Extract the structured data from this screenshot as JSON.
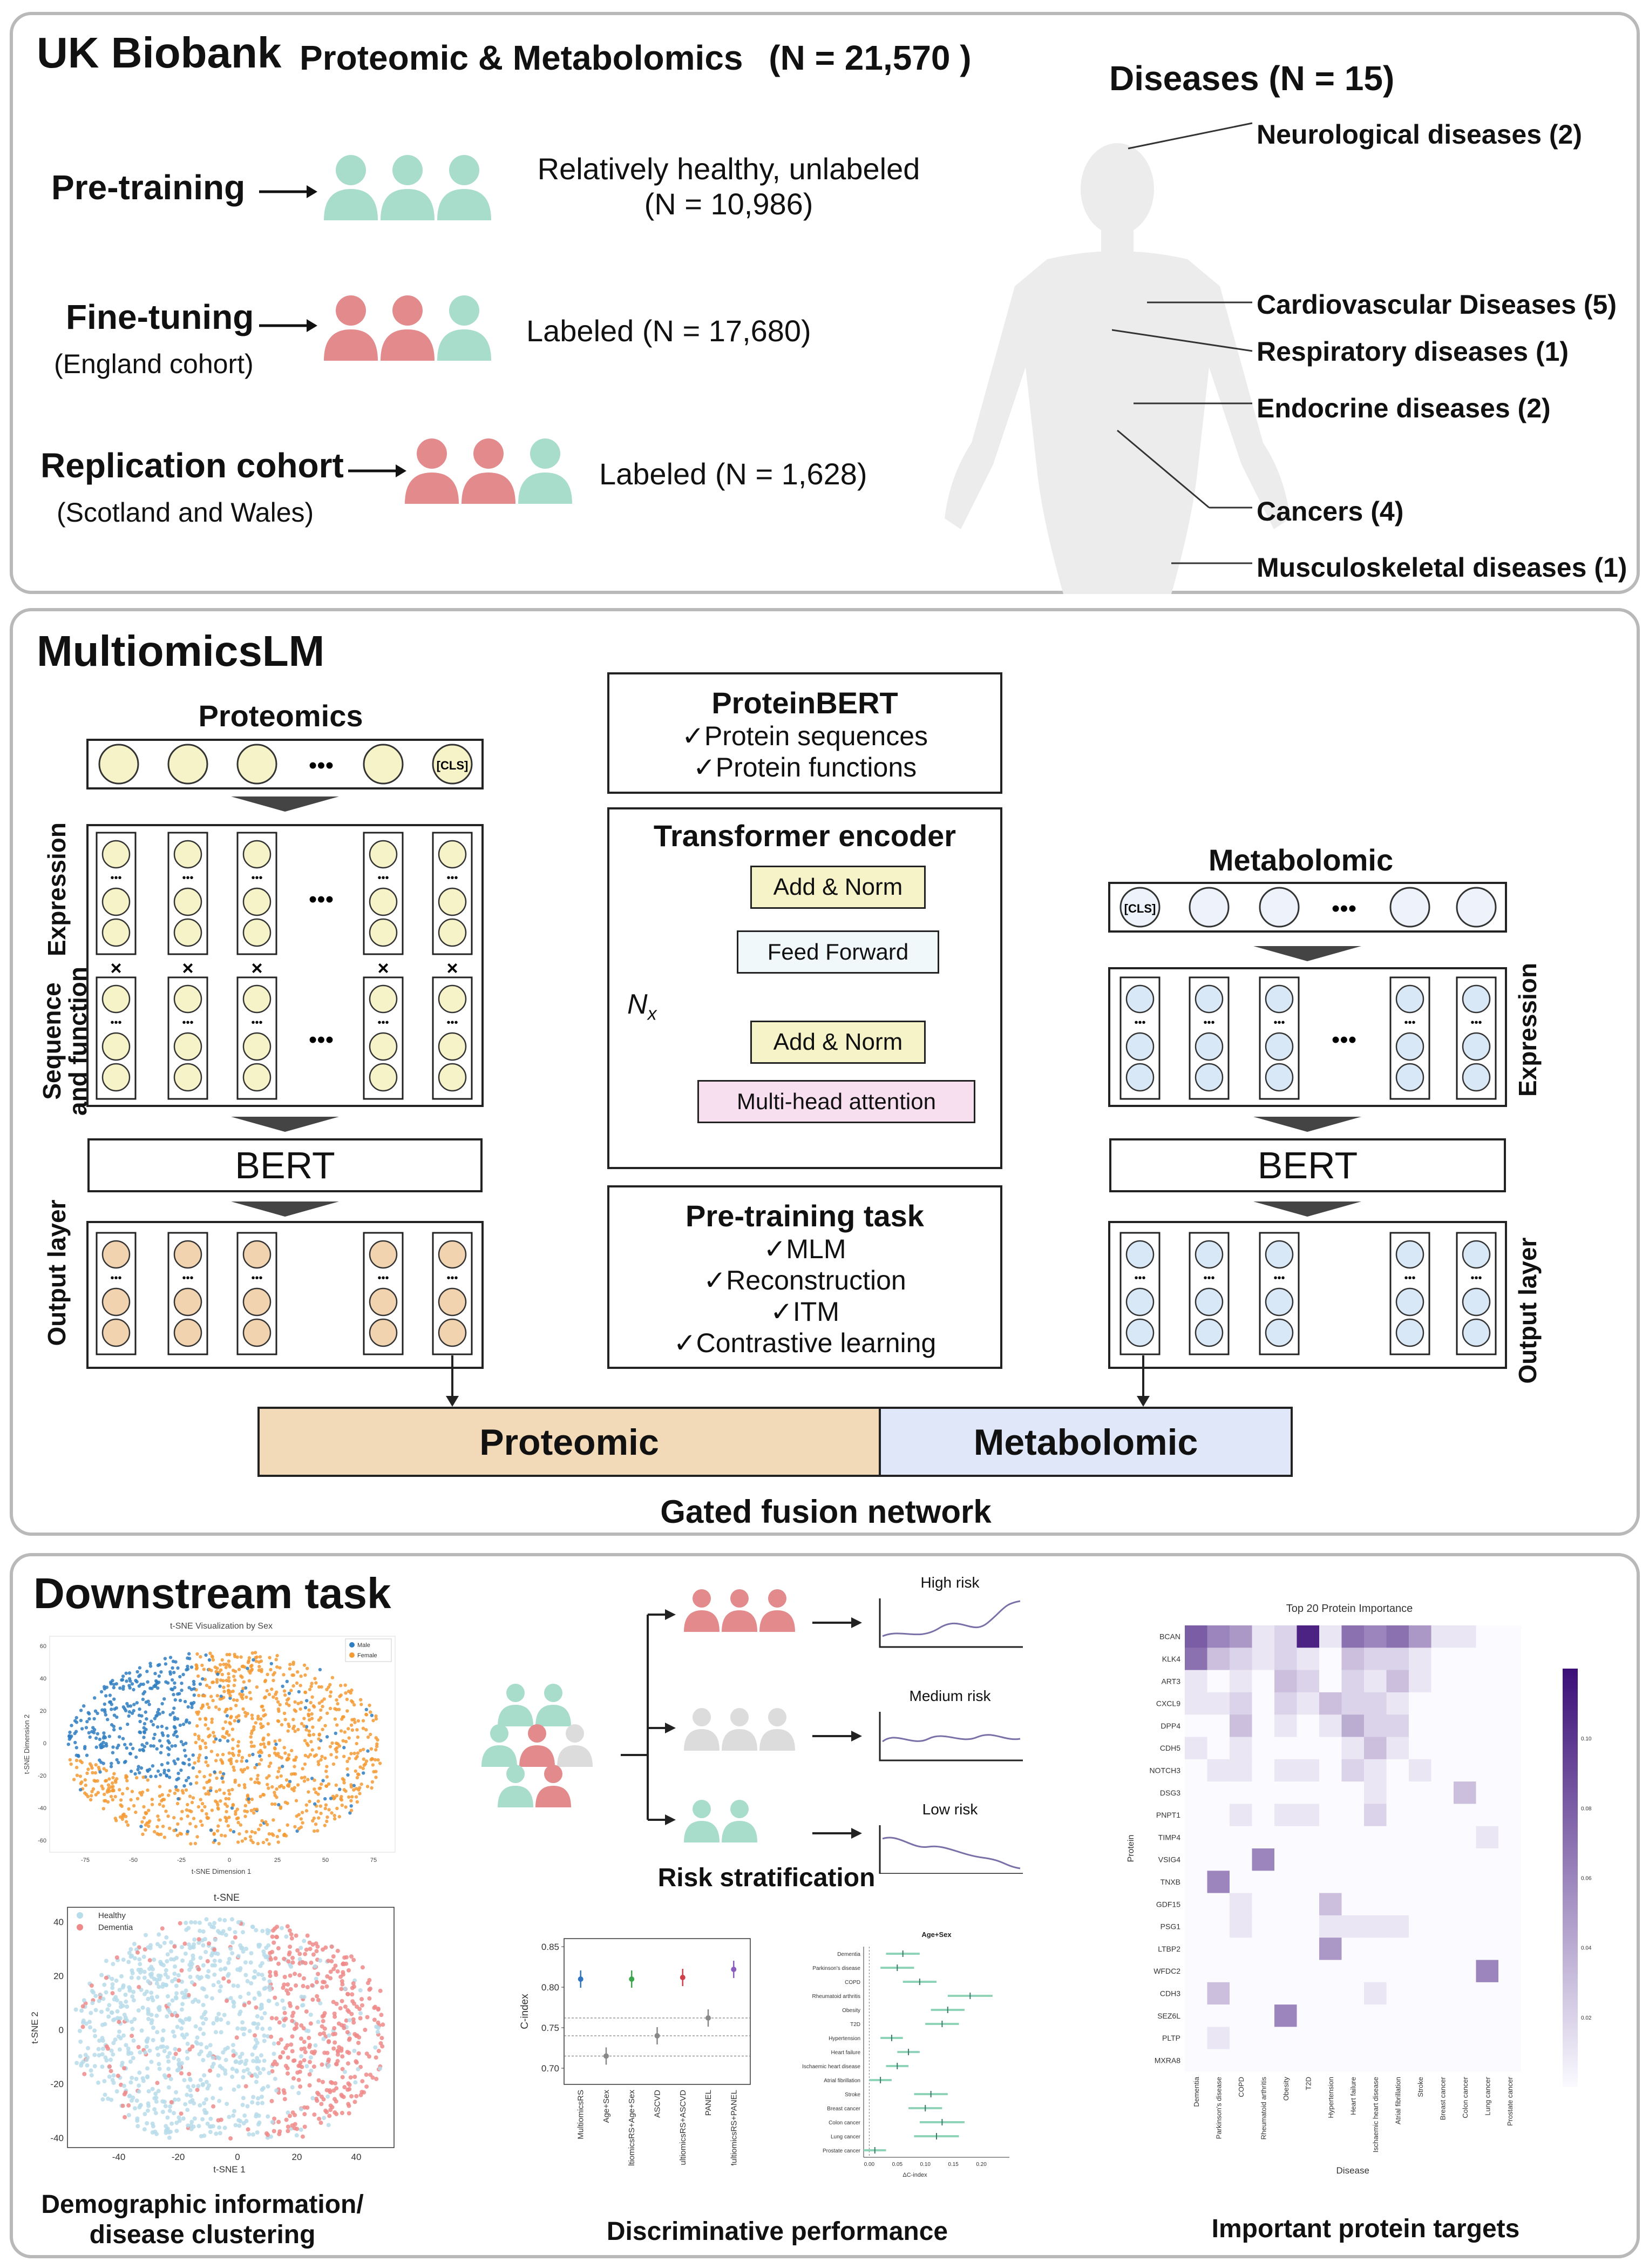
{
  "top": {
    "ukb": "UK Biobank",
    "cohort_title": "Proteomic & Metabolomics",
    "cohort_n": "(N =  21,570 )",
    "pretrain": {
      "label": "Pre-training",
      "desc1": "Relatively healthy, unlabeled",
      "desc2": "(N =  10,986)"
    },
    "finetune": {
      "label": "Fine-tuning",
      "sub": "(England cohort)",
      "desc": "Labeled  (N = 17,680)"
    },
    "replication": {
      "label": "Replication cohort",
      "sub": "(Scotland and Wales)",
      "desc": "Labeled  (N = 1,628)"
    },
    "diseases_title": "Diseases (N = 15)",
    "diseases": [
      "Neurological diseases (2)",
      "Cardiovascular Diseases (5)",
      "Respiratory diseases (1)",
      "Endocrine diseases (2)",
      "Cancers (4)",
      "Musculoskeletal diseases (1)"
    ]
  },
  "mid": {
    "title": "MultiomicsLM",
    "proteomics": "Proteomics",
    "metabolomic": "Metabolomic",
    "cls": "[CLS]",
    "dots": "•••",
    "expression": "Expression",
    "seq_func1": "Sequence",
    "seq_func2": "and function",
    "output_layer": "Output layer",
    "bert": "BERT",
    "x": "×",
    "proteinbert": {
      "title": "ProteinBERT",
      "items": [
        "✓Protein sequences",
        "✓Protein functions"
      ]
    },
    "transformer": {
      "title": "Transformer encoder",
      "add_norm": "Add & Norm",
      "feed_forward": "Feed Forward",
      "mha": "Multi-head attention",
      "nx": "N",
      "nx_sub": "x"
    },
    "pretask": {
      "title": "Pre-training task",
      "items": [
        "✓MLM",
        "✓Reconstruction",
        "✓ITM",
        "✓Contrastive learning"
      ]
    },
    "fusion_left": "Proteomic",
    "fusion_right": "Metabolomic",
    "fusion_caption": "Gated fusion network"
  },
  "bottom": {
    "title": "Downstream task",
    "captions": {
      "demo": "Demographic information/",
      "demo2": "disease clustering",
      "risk": "Risk stratification",
      "disc": "Discriminative performance",
      "protein": "Important protein targets"
    },
    "risk_labels": [
      "High risk",
      "Medium risk",
      "Low risk"
    ],
    "tsne_sex": {
      "title": "t-SNE Visualization by Sex",
      "legend": [
        "Male",
        "Female"
      ],
      "xlabel": "t-SNE Dimension 1",
      "ylabel": "t-SNE Dimension 2",
      "xticks": [
        "-75",
        "-50",
        "-25",
        "0",
        "25",
        "50",
        "75"
      ],
      "yticks": [
        "60",
        "40",
        "20",
        "0",
        "-20",
        "-40",
        "-60"
      ]
    },
    "tsne_dem": {
      "title": "t-SNE",
      "legend": [
        "Healthy",
        "Dementia"
      ],
      "xlabel": "t-SNE 1",
      "ylabel": "t-SNE 2",
      "xticks": [
        "-40",
        "-20",
        "0",
        "20",
        "40"
      ],
      "yticks": [
        "40",
        "20",
        "0",
        "-20",
        "-40"
      ]
    },
    "forest_title": "Age+Sex",
    "forest_xlabel": "ΔC-index",
    "forest_xticks": [
      "0.00",
      "0.05",
      "0.10",
      "0.15",
      "0.20"
    ],
    "heatmap": {
      "title": "Top 20 Protein Importance",
      "ylabel": "Protein",
      "xlabel": "Disease",
      "cbar": [
        "0.10",
        "0.08",
        "0.06",
        "0.04",
        "0.02"
      ]
    }
  },
  "chart_data": [
    {
      "type": "scatter",
      "title": "",
      "ylabel": "C-index",
      "ylim": [
        0.68,
        0.86
      ],
      "yticks": [
        "0.85",
        "0.80",
        "0.75",
        "0.70"
      ],
      "categories": [
        "MultiomicsRS",
        "Age+Sex",
        "MultiomicsRS+Age+Sex",
        "ASCVD",
        "MultiomicsRS+ASCVD",
        "PANEL",
        "MultiomicsRS+PANEL"
      ],
      "values": [
        0.81,
        0.715,
        0.81,
        0.74,
        0.812,
        0.762,
        0.822
      ],
      "colors": [
        "#2f74c0",
        "#888888",
        "#3aa64a",
        "#888888",
        "#d0404a",
        "#888888",
        "#8a5cc0"
      ],
      "reference_lines": [
        0.762,
        0.74,
        0.715
      ]
    },
    {
      "type": "scatter",
      "title": "Age+Sex",
      "xlabel": "ΔC-index",
      "xlim": [
        -0.01,
        0.25
      ],
      "categories": [
        "Dementia",
        "Parkinson's disease",
        "COPD",
        "Rheumatoid arthritis",
        "Obesity",
        "T2D",
        "Hypertension",
        "Heart failure",
        "Ischaemic heart disease",
        "Atrial fibrillation",
        "Stroke",
        "Breast cancer",
        "Colon cancer",
        "Lung cancer",
        "Prostate cancer"
      ],
      "values": [
        0.06,
        0.05,
        0.09,
        0.18,
        0.14,
        0.13,
        0.04,
        0.07,
        0.05,
        0.02,
        0.11,
        0.1,
        0.13,
        0.12,
        0.01
      ],
      "lower": [
        0.03,
        0.02,
        0.06,
        0.14,
        0.11,
        0.1,
        0.02,
        0.05,
        0.03,
        0.0,
        0.08,
        0.07,
        0.09,
        0.08,
        -0.01
      ],
      "upper": [
        0.09,
        0.08,
        0.12,
        0.22,
        0.17,
        0.16,
        0.06,
        0.09,
        0.07,
        0.04,
        0.14,
        0.13,
        0.17,
        0.16,
        0.03
      ]
    },
    {
      "type": "heatmap",
      "title": "Top 20 Protein Importance",
      "rows": [
        "BCAN",
        "KLK4",
        "ART3",
        "CXCL9",
        "DPP4",
        "CDH5",
        "NOTCH3",
        "DSG3",
        "PNPT1",
        "TIMP4",
        "VSIG4",
        "TNXB",
        "GDF15",
        "PSG1",
        "LTBP2",
        "WFDC2",
        "CDH3",
        "SEZ6L",
        "PLTP",
        "MXRA8"
      ],
      "cols": [
        "Dementia",
        "Parkinson's disease",
        "COPD",
        "Rheumatoid arthritis",
        "Obesity",
        "T2D",
        "Hypertension",
        "Heart failure",
        "Ischaemic heart disease",
        "Atrial fibrillation",
        "Stroke",
        "Breast cancer",
        "Colon cancer",
        "Lung cancer",
        "Prostate cancer"
      ],
      "values": [
        [
          0.08,
          0.06,
          0.05,
          0.01,
          0.02,
          0.11,
          0.01,
          0.07,
          0.06,
          0.07,
          0.05,
          0.01,
          0.01,
          0.0,
          0.0
        ],
        [
          0.07,
          0.03,
          0.02,
          0.01,
          0.02,
          0.01,
          0.0,
          0.03,
          0.02,
          0.02,
          0.01,
          0.0,
          0.0,
          0.0,
          0.0
        ],
        [
          0.01,
          0.0,
          0.01,
          0.0,
          0.03,
          0.02,
          0.0,
          0.02,
          0.01,
          0.03,
          0.01,
          0.0,
          0.0,
          0.0,
          0.0
        ],
        [
          0.01,
          0.01,
          0.02,
          0.0,
          0.02,
          0.01,
          0.03,
          0.02,
          0.02,
          0.01,
          0.0,
          0.0,
          0.0,
          0.0,
          0.0
        ],
        [
          0.0,
          0.0,
          0.03,
          0.0,
          0.01,
          0.0,
          0.01,
          0.04,
          0.02,
          0.02,
          0.0,
          0.0,
          0.0,
          0.0,
          0.0
        ],
        [
          0.01,
          0.0,
          0.01,
          0.0,
          0.0,
          0.0,
          0.0,
          0.01,
          0.03,
          0.01,
          0.0,
          0.0,
          0.0,
          0.0,
          0.0
        ],
        [
          0.0,
          0.01,
          0.01,
          0.0,
          0.01,
          0.01,
          0.0,
          0.02,
          0.01,
          0.0,
          0.01,
          0.0,
          0.0,
          0.0,
          0.0
        ],
        [
          0.0,
          0.0,
          0.0,
          0.0,
          0.0,
          0.0,
          0.0,
          0.0,
          0.01,
          0.0,
          0.0,
          0.0,
          0.03,
          0.0,
          0.0
        ],
        [
          0.0,
          0.0,
          0.01,
          0.0,
          0.01,
          0.01,
          0.0,
          0.0,
          0.02,
          0.0,
          0.0,
          0.0,
          0.0,
          0.0,
          0.0
        ],
        [
          0.0,
          0.0,
          0.0,
          0.0,
          0.0,
          0.0,
          0.0,
          0.0,
          0.0,
          0.0,
          0.0,
          0.0,
          0.0,
          0.01,
          0.0
        ],
        [
          0.0,
          0.0,
          0.0,
          0.06,
          0.0,
          0.0,
          0.0,
          0.0,
          0.0,
          0.0,
          0.0,
          0.0,
          0.0,
          0.0,
          0.0
        ],
        [
          0.0,
          0.06,
          0.0,
          0.0,
          0.0,
          0.0,
          0.0,
          0.0,
          0.0,
          0.0,
          0.0,
          0.0,
          0.0,
          0.0,
          0.0
        ],
        [
          0.0,
          0.0,
          0.01,
          0.0,
          0.0,
          0.0,
          0.03,
          0.0,
          0.0,
          0.0,
          0.0,
          0.0,
          0.0,
          0.0,
          0.0
        ],
        [
          0.0,
          0.0,
          0.01,
          0.0,
          0.0,
          0.0,
          0.01,
          0.01,
          0.01,
          0.01,
          0.0,
          0.0,
          0.0,
          0.0,
          0.0
        ],
        [
          0.0,
          0.0,
          0.0,
          0.0,
          0.0,
          0.0,
          0.05,
          0.0,
          0.0,
          0.0,
          0.0,
          0.0,
          0.0,
          0.0,
          0.0
        ],
        [
          0.0,
          0.0,
          0.0,
          0.0,
          0.0,
          0.0,
          0.0,
          0.0,
          0.0,
          0.0,
          0.0,
          0.0,
          0.0,
          0.06,
          0.0
        ],
        [
          0.0,
          0.03,
          0.0,
          0.0,
          0.0,
          0.0,
          0.0,
          0.0,
          0.01,
          0.0,
          0.0,
          0.0,
          0.0,
          0.0,
          0.0
        ],
        [
          0.0,
          0.0,
          0.0,
          0.0,
          0.06,
          0.0,
          0.0,
          0.0,
          0.0,
          0.0,
          0.0,
          0.0,
          0.0,
          0.0,
          0.0
        ],
        [
          0.0,
          0.01,
          0.0,
          0.0,
          0.0,
          0.0,
          0.0,
          0.0,
          0.0,
          0.0,
          0.0,
          0.0,
          0.0,
          0.0,
          0.0
        ],
        [
          0.0,
          0.0,
          0.0,
          0.0,
          0.0,
          0.0,
          0.0,
          0.0,
          0.0,
          0.0,
          0.0,
          0.0,
          0.0,
          0.0,
          0.0
        ]
      ],
      "colorbar_range": [
        0.0,
        0.12
      ]
    }
  ],
  "colors": {
    "green_person": "#a8dccb",
    "red_person": "#e28a8c",
    "grey_person": "#dcdcdc",
    "proteomic_fill": "#f2d9b8",
    "metabolomic_fill": "#dfe7f8",
    "yellow_node": "#f7f3c8",
    "orange_node": "#f2d3b0",
    "blue_node": "#d9e8f6"
  }
}
